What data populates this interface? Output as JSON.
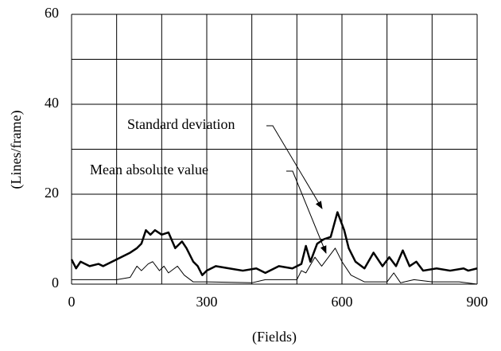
{
  "chart_data": {
    "type": "line",
    "xlabel": "(Fields)",
    "ylabel": "(Lines/frame)",
    "annotations": [
      "Standard deviation",
      "Mean absolute value"
    ],
    "xlim": [
      0,
      900
    ],
    "ylim": [
      0,
      60
    ],
    "xticks": [
      0,
      300,
      600,
      900
    ],
    "yticks": [
      0,
      20,
      40,
      60
    ],
    "xgrid": [
      0,
      100,
      200,
      300,
      400,
      500,
      600,
      700,
      800,
      900
    ],
    "ygrid": [
      0,
      10,
      20,
      30,
      40,
      50,
      60
    ],
    "grid": true,
    "series": [
      {
        "name": "Standard deviation",
        "color": "#000000",
        "line_width": 2.5,
        "x": [
          0,
          10,
          20,
          40,
          60,
          70,
          90,
          110,
          130,
          145,
          155,
          165,
          175,
          185,
          200,
          215,
          230,
          245,
          255,
          270,
          280,
          290,
          300,
          320,
          350,
          380,
          410,
          430,
          460,
          490,
          510,
          520,
          530,
          545,
          560,
          575,
          590,
          605,
          615,
          630,
          650,
          670,
          690,
          705,
          720,
          735,
          750,
          765,
          780,
          810,
          840,
          870,
          880,
          900
        ],
        "values": [
          5.5,
          3.5,
          5,
          4,
          4.5,
          4,
          5,
          6,
          7,
          8,
          9,
          12,
          11,
          12,
          11,
          11.5,
          8,
          9.5,
          8,
          5,
          4,
          2,
          3,
          4,
          3.5,
          3,
          3.5,
          2.5,
          4,
          3.5,
          4.5,
          8.5,
          5,
          9,
          10,
          10.5,
          16,
          12,
          8,
          5,
          3.5,
          7,
          4,
          6,
          4,
          7.5,
          4,
          5,
          3,
          3.5,
          3,
          3.5,
          3,
          3.5
        ]
      },
      {
        "name": "Mean absolute value",
        "color": "#000000",
        "line_width": 1,
        "x": [
          0,
          100,
          130,
          145,
          155,
          170,
          180,
          195,
          205,
          215,
          235,
          250,
          270,
          300,
          400,
          430,
          500,
          510,
          520,
          540,
          555,
          585,
          600,
          620,
          650,
          700,
          715,
          730,
          760,
          800,
          860,
          900
        ],
        "values": [
          1,
          1,
          1.5,
          4,
          3,
          4.5,
          5,
          3,
          4,
          2.5,
          4,
          2,
          0.5,
          0.5,
          0.3,
          1,
          1,
          3,
          2.5,
          6,
          4,
          8,
          5,
          2,
          0.5,
          0.5,
          2.5,
          0.3,
          1,
          0.5,
          0.5,
          0
        ]
      }
    ]
  }
}
